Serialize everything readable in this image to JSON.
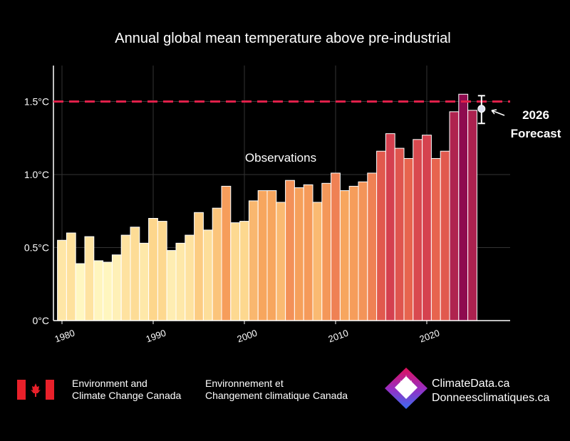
{
  "chart_data": {
    "type": "bar",
    "title": "Annual global mean temperature above pre-industrial",
    "xlabel": "",
    "ylabel": "",
    "ylim": [
      0,
      1.75
    ],
    "xlim": [
      1979.5,
      2029
    ],
    "grid": true,
    "yticks": [
      {
        "v": 0,
        "label": "0°C"
      },
      {
        "v": 0.5,
        "label": "0.5°C"
      },
      {
        "v": 1.0,
        "label": "1.0°C"
      },
      {
        "v": 1.5,
        "label": "1.5°C"
      }
    ],
    "xticks": [
      1980,
      1990,
      2000,
      2010,
      2020
    ],
    "years": [
      1980,
      1981,
      1982,
      1983,
      1984,
      1985,
      1986,
      1987,
      1988,
      1989,
      1990,
      1991,
      1992,
      1993,
      1994,
      1995,
      1996,
      1997,
      1998,
      1999,
      2000,
      2001,
      2002,
      2003,
      2004,
      2005,
      2006,
      2007,
      2008,
      2009,
      2010,
      2011,
      2012,
      2013,
      2014,
      2015,
      2016,
      2017,
      2018,
      2019,
      2020,
      2021,
      2022,
      2023,
      2024,
      2025
    ],
    "values": [
      0.55,
      0.6,
      0.39,
      0.575,
      0.41,
      0.4,
      0.45,
      0.585,
      0.64,
      0.53,
      0.7,
      0.68,
      0.48,
      0.53,
      0.585,
      0.74,
      0.62,
      0.77,
      0.92,
      0.67,
      0.68,
      0.82,
      0.89,
      0.89,
      0.81,
      0.96,
      0.91,
      0.93,
      0.81,
      0.94,
      1.01,
      0.89,
      0.92,
      0.95,
      1.01,
      1.16,
      1.28,
      1.18,
      1.11,
      1.24,
      1.27,
      1.11,
      1.16,
      1.43,
      1.55,
      1.44
    ],
    "series_label": "Observations",
    "threshold": {
      "value": 1.5,
      "color": "#e0204a",
      "style": "dashed"
    },
    "forecast": {
      "year": 2026,
      "value": 1.45,
      "low": 1.35,
      "high": 1.54,
      "label_year": "2026",
      "label": "Forecast"
    },
    "colors": {
      "low": "#fffbc8",
      "high": "#8e0b4f"
    }
  },
  "footer": {
    "eccc_en_line1": "Environment and",
    "eccc_en_line2": "Climate Change Canada",
    "eccc_fr_line1": "Environnement et",
    "eccc_fr_line2": "Changement climatique Canada",
    "cd_line1": "ClimateData.ca",
    "cd_line2": "Donneesclimatiques.ca"
  }
}
